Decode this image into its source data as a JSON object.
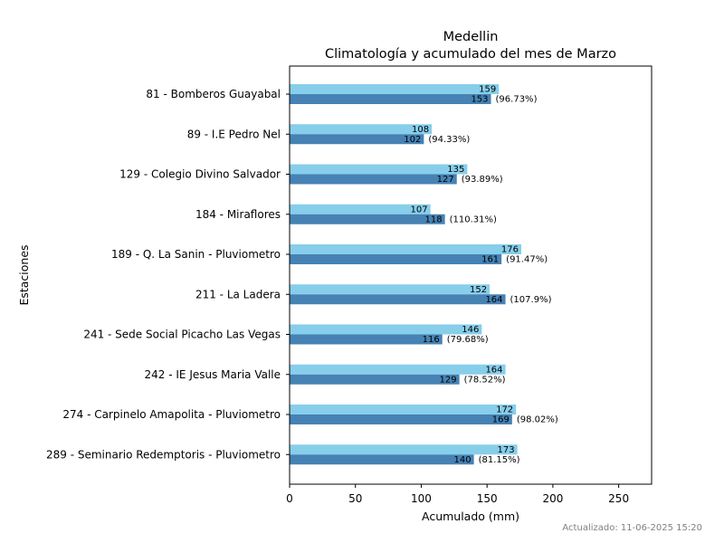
{
  "chart_data": {
    "type": "bar",
    "orientation": "horizontal",
    "title": "Medellin",
    "subtitle": "Climatología y acumulado del mes de Marzo",
    "xlabel": "Acumulado (mm)",
    "ylabel": "Estaciones",
    "xlim": [
      0,
      275
    ],
    "xticks": [
      0,
      50,
      100,
      150,
      200,
      250
    ],
    "grid": false,
    "categories": [
      "81 - Bomberos Guayabal",
      "89 - I.E Pedro Nel",
      "129 - Colegio Divino Salvador",
      "184 - Miraflores",
      "189 - Q. La Sanin - Pluviometro",
      "211 - La Ladera",
      "241 - Sede Social Picacho Las Vegas",
      "242 - IE Jesus Maria Valle",
      "274 - Carpinelo Amapolita - Pluviometro",
      "289 - Seminario Redemptoris - Pluviometro"
    ],
    "series": [
      {
        "color": "#87ceeb",
        "values": [
          159,
          108,
          135,
          107,
          176,
          152,
          146,
          164,
          172,
          173
        ]
      },
      {
        "color": "#4682b4",
        "values": [
          153,
          102,
          127,
          118,
          161,
          164,
          116,
          129,
          169,
          140
        ]
      }
    ],
    "percent_labels": [
      "(96.73%)",
      "(94.33%)",
      "(93.89%)",
      "(110.31%)",
      "(91.47%)",
      "(107.9%)",
      "(79.68%)",
      "(78.52%)",
      "(98.02%)",
      "(81.15%)"
    ]
  },
  "footer": {
    "updated": "Actualizado: 11-06-2025 15:20"
  }
}
